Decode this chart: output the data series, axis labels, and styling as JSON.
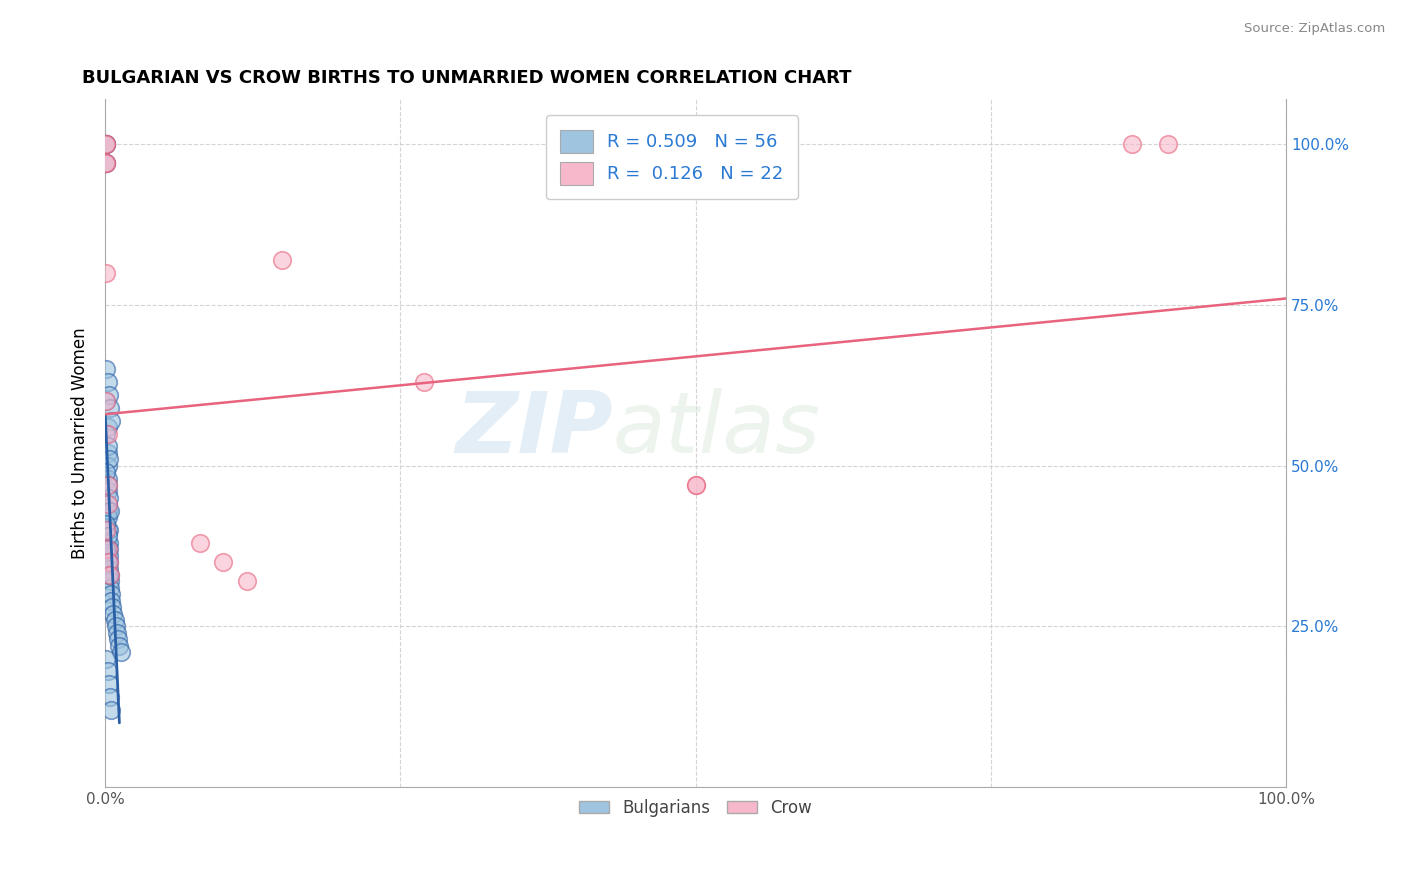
{
  "title": "BULGARIAN VS CROW BIRTHS TO UNMARRIED WOMEN CORRELATION CHART",
  "source": "Source: ZipAtlas.com",
  "ylabel": "Births to Unmarried Women",
  "watermark_zip": "ZIP",
  "watermark_atlas": "atlas",
  "bulgarian_R": 0.509,
  "bulgarian_N": 56,
  "crow_R": 0.126,
  "crow_N": 22,
  "blue_scatter_color": "#9ec4e0",
  "blue_line_color": "#2a5fa5",
  "pink_scatter_color": "#f7b8cb",
  "pink_line_color": "#e8637d",
  "legend_text_color": "#2a7ad4",
  "tick_color": "#2a7ad4",
  "grid_color": "#d0d0d0",
  "bg_color": "#ffffff",
  "bulgarian_x": [
    0.001,
    0.001,
    0.001,
    0.001,
    0.001,
    0.001,
    0.002,
    0.002,
    0.002,
    0.002,
    0.002,
    0.002,
    0.002,
    0.002,
    0.002,
    0.003,
    0.003,
    0.003,
    0.003,
    0.003,
    0.003,
    0.004,
    0.004,
    0.004,
    0.005,
    0.005,
    0.006,
    0.007,
    0.008,
    0.009,
    0.01,
    0.011,
    0.012,
    0.013,
    0.001,
    0.002,
    0.003,
    0.004,
    0.005,
    0.001,
    0.002,
    0.003,
    0.001,
    0.002,
    0.003,
    0.004,
    0.001,
    0.002,
    0.001,
    0.002,
    0.003,
    0.001,
    0.002,
    0.003,
    0.004,
    0.005
  ],
  "bulgarian_y": [
    1.0,
    1.0,
    1.0,
    0.97,
    0.97,
    0.6,
    0.56,
    0.52,
    0.5,
    0.48,
    0.46,
    0.44,
    0.43,
    0.42,
    0.4,
    0.4,
    0.38,
    0.37,
    0.36,
    0.35,
    0.34,
    0.33,
    0.32,
    0.31,
    0.3,
    0.29,
    0.28,
    0.27,
    0.26,
    0.25,
    0.24,
    0.23,
    0.22,
    0.21,
    0.65,
    0.63,
    0.61,
    0.59,
    0.57,
    0.55,
    0.53,
    0.51,
    0.49,
    0.47,
    0.45,
    0.43,
    0.41,
    0.39,
    0.37,
    0.35,
    0.33,
    0.2,
    0.18,
    0.16,
    0.14,
    0.12
  ],
  "crow_x": [
    0.001,
    0.001,
    0.001,
    0.001,
    0.001,
    0.001,
    0.002,
    0.002,
    0.002,
    0.15,
    0.27,
    0.5,
    0.5,
    0.87,
    0.9,
    0.001,
    0.002,
    0.003,
    0.004,
    0.1,
    0.12,
    0.08
  ],
  "crow_y": [
    1.0,
    1.0,
    0.97,
    0.97,
    0.8,
    0.6,
    0.55,
    0.47,
    0.44,
    0.82,
    0.63,
    0.47,
    0.47,
    1.0,
    1.0,
    0.4,
    0.37,
    0.35,
    0.33,
    0.35,
    0.32,
    0.38
  ],
  "xlim": [
    0.0,
    1.0
  ],
  "ylim": [
    0.0,
    1.07
  ],
  "xticks": [
    0.0,
    0.25,
    0.5,
    0.75,
    1.0
  ],
  "yticks": [
    0.0,
    0.25,
    0.5,
    0.75,
    1.0
  ],
  "xticklabels": [
    "0.0%",
    "",
    "",
    "",
    "100.0%"
  ],
  "yticklabels_right": [
    "",
    "25.0%",
    "50.0%",
    "75.0%",
    "100.0%"
  ]
}
